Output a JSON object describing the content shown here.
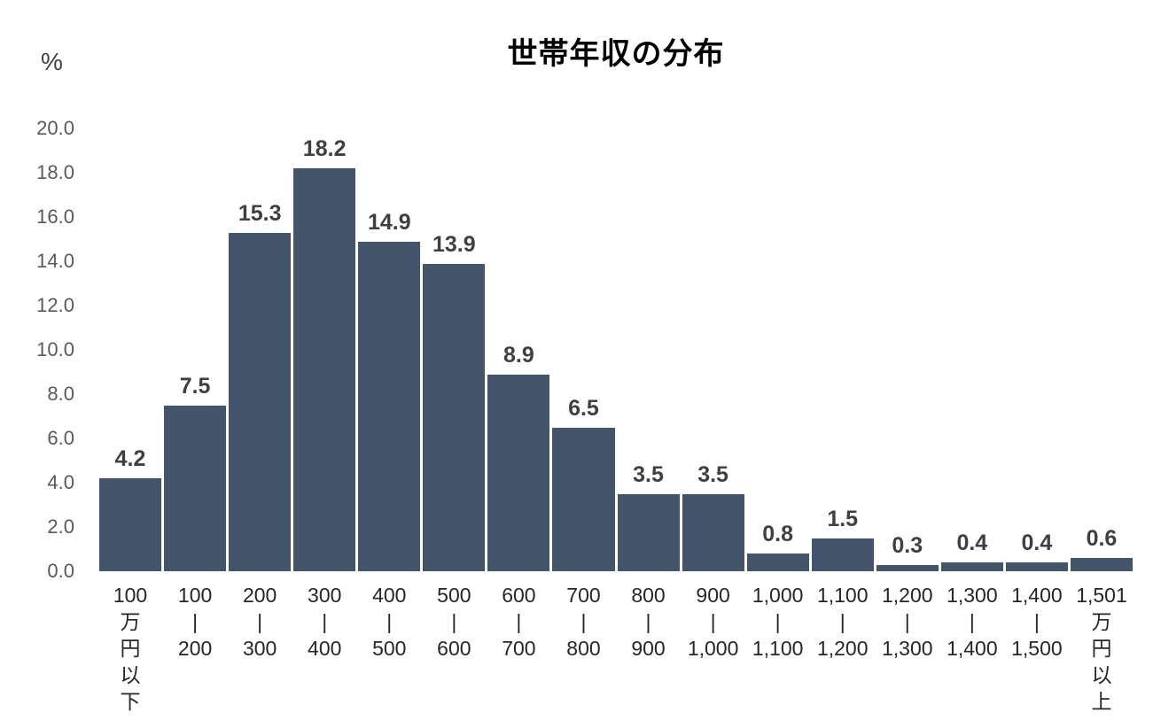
{
  "chart_data": {
    "type": "bar",
    "title": "世帯年収の分布",
    "ylabel": "%",
    "xlabel": "",
    "ylim": [
      0,
      20
    ],
    "ytick_step": 2,
    "yticks": [
      "20.0",
      "18.0",
      "16.0",
      "14.0",
      "12.0",
      "10.0",
      "8.0",
      "6.0",
      "4.0",
      "2.0",
      "0.0"
    ],
    "grid": false,
    "legend_position": "none",
    "categories": [
      "100万円以下",
      "100|200",
      "200|300",
      "300|400",
      "400|500",
      "500|600",
      "600|700",
      "700|800",
      "800|900",
      "900|1,000",
      "1,000|1,100",
      "1,100|1,200",
      "1,200|1,300",
      "1,300|1,400",
      "1,400|1,500",
      "1,501万円以上"
    ],
    "category_label_lines": [
      [
        "100",
        "万",
        "円",
        "以",
        "下"
      ],
      [
        "100",
        "|",
        "200"
      ],
      [
        "200",
        "|",
        "300"
      ],
      [
        "300",
        "|",
        "400"
      ],
      [
        "400",
        "|",
        "500"
      ],
      [
        "500",
        "|",
        "600"
      ],
      [
        "600",
        "|",
        "700"
      ],
      [
        "700",
        "|",
        "800"
      ],
      [
        "800",
        "|",
        "900"
      ],
      [
        "900",
        "|",
        "1,000"
      ],
      [
        "1,000",
        "|",
        "1,100"
      ],
      [
        "1,100",
        "|",
        "1,200"
      ],
      [
        "1,200",
        "|",
        "1,300"
      ],
      [
        "1,300",
        "|",
        "1,400"
      ],
      [
        "1,400",
        "|",
        "1,500"
      ],
      [
        "1,501",
        "万",
        "円",
        "以",
        "上"
      ]
    ],
    "values": [
      4.2,
      7.5,
      15.3,
      18.2,
      14.9,
      13.9,
      8.9,
      6.5,
      3.5,
      3.5,
      0.8,
      1.5,
      0.3,
      0.4,
      0.4,
      0.6
    ],
    "value_labels": [
      "4.2",
      "7.5",
      "15.3",
      "18.2",
      "14.9",
      "13.9",
      "8.9",
      "6.5",
      "3.5",
      "3.5",
      "0.8",
      "1.5",
      "0.3",
      "0.4",
      "0.4",
      "0.6"
    ],
    "colors": {
      "bar": "#44546A",
      "title": "#000000",
      "value_label": "#404040",
      "ytick": "#595959",
      "xtick": "#262626",
      "background": "#FFFFFF"
    }
  }
}
